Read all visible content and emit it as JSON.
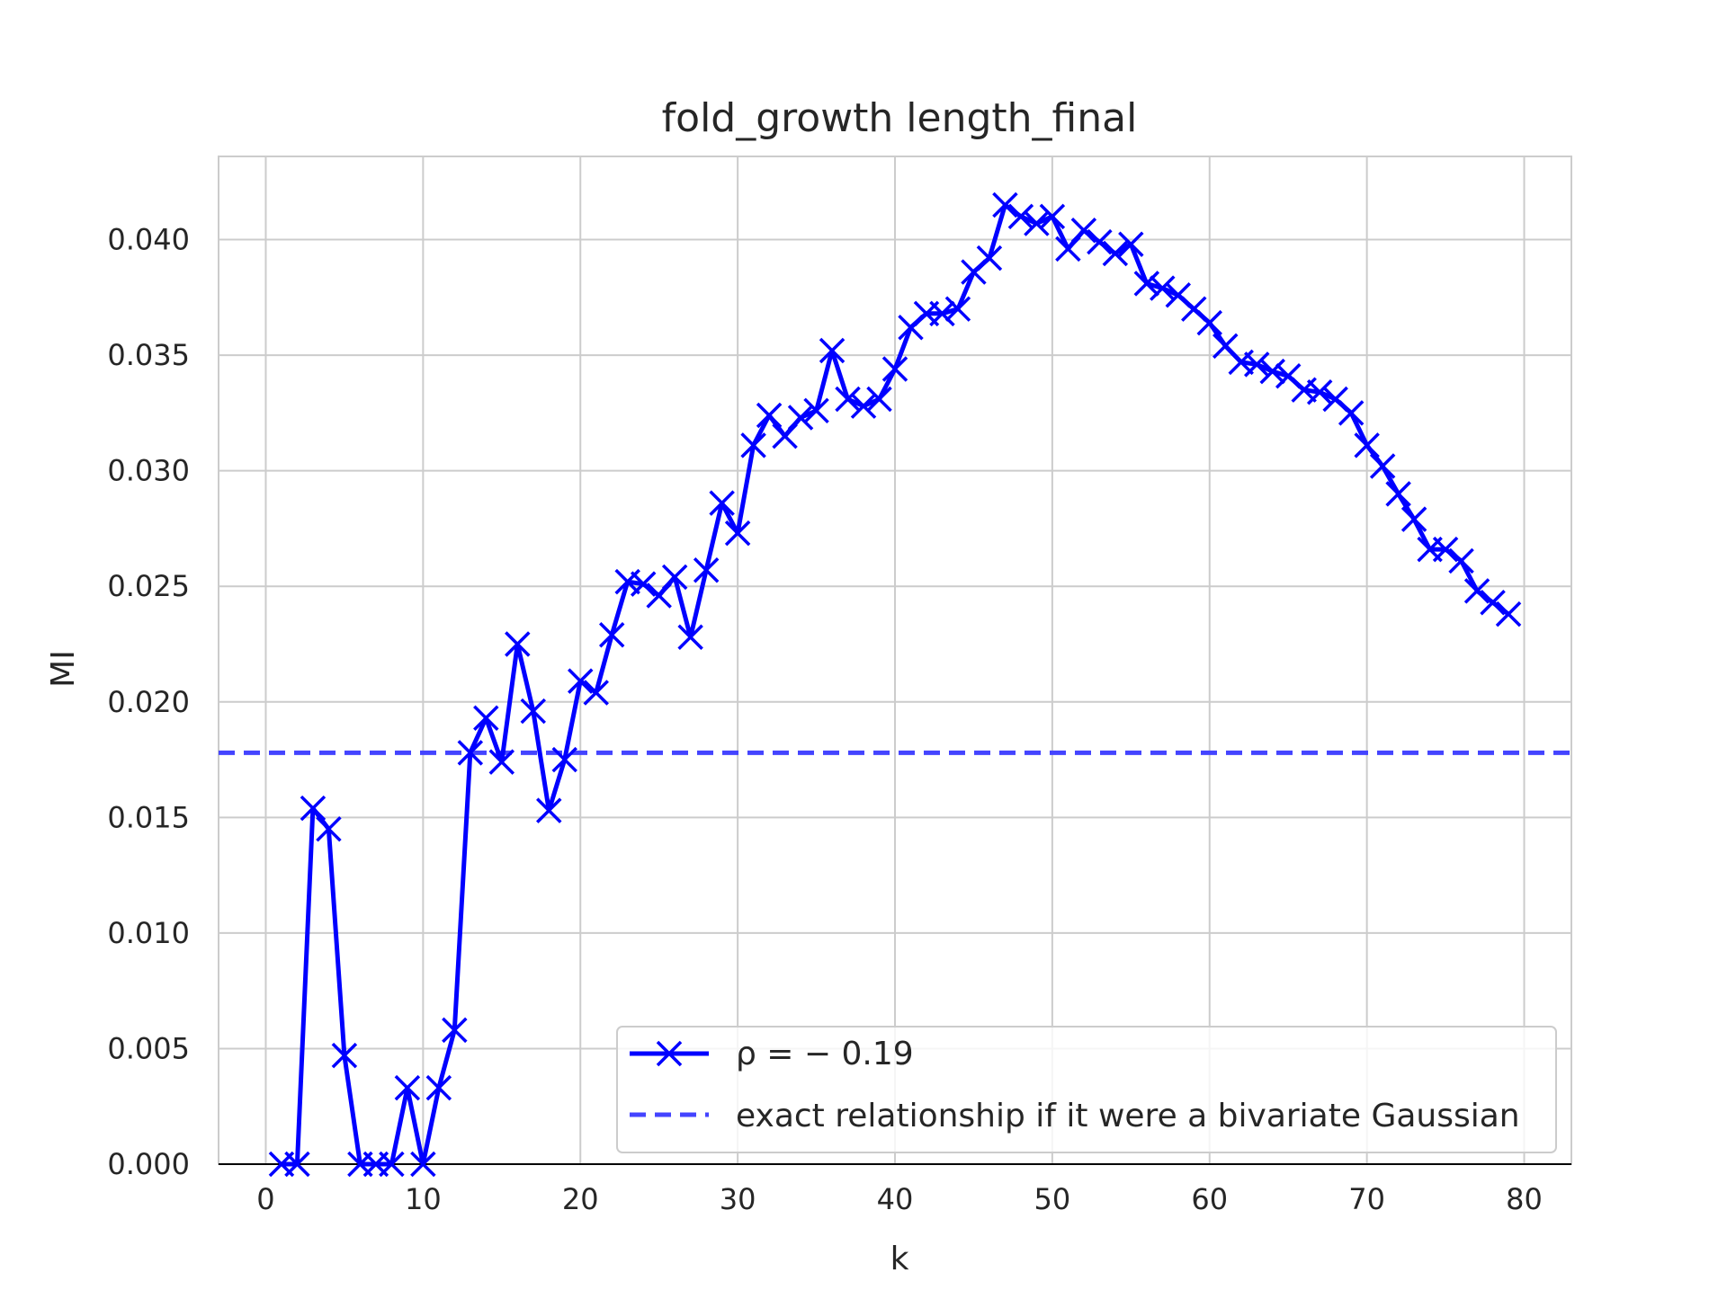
{
  "chart_data": {
    "type": "line",
    "title": "fold_growth length_final",
    "xlabel": "k",
    "ylabel": "MI",
    "xlim": [
      -3,
      83
    ],
    "ylim": [
      0,
      0.0436
    ],
    "xticks": [
      0,
      10,
      20,
      30,
      40,
      50,
      60,
      70,
      80
    ],
    "xtick_labels": [
      "0",
      "10",
      "20",
      "30",
      "40",
      "50",
      "60",
      "70",
      "80"
    ],
    "yticks": [
      0,
      0.005,
      0.01,
      0.015,
      0.02,
      0.025,
      0.03,
      0.035,
      0.04
    ],
    "ytick_labels": [
      "0.000",
      "0.005",
      "0.010",
      "0.015",
      "0.020",
      "0.025",
      "0.030",
      "0.035",
      "0.040"
    ],
    "grid": true,
    "legend_position": "lower-right",
    "series": [
      {
        "name": "ρ = − 0.19",
        "color": "#0000ff",
        "marker": "x",
        "line_style": "solid",
        "x": [
          1,
          2,
          3,
          4,
          5,
          6,
          7,
          8,
          9,
          10,
          11,
          12,
          13,
          14,
          15,
          16,
          17,
          18,
          19,
          20,
          21,
          22,
          23,
          24,
          25,
          26,
          27,
          28,
          29,
          30,
          31,
          32,
          33,
          34,
          35,
          36,
          37,
          38,
          39,
          40,
          41,
          42,
          43,
          44,
          45,
          46,
          47,
          48,
          49,
          50,
          51,
          52,
          53,
          54,
          55,
          56,
          57,
          58,
          59,
          60,
          61,
          62,
          63,
          64,
          65,
          66,
          67,
          68,
          69,
          70,
          71,
          72,
          73,
          74,
          75,
          76,
          77,
          78,
          79
        ],
        "values": [
          0,
          0,
          0.0154,
          0.0145,
          0.0047,
          0,
          0,
          0,
          0.0033,
          0,
          0.0033,
          0.0058,
          0.0178,
          0.0193,
          0.0174,
          0.0225,
          0.0196,
          0.0153,
          0.0175,
          0.0209,
          0.0204,
          0.0229,
          0.0252,
          0.0251,
          0.0246,
          0.0254,
          0.0228,
          0.0257,
          0.0286,
          0.0273,
          0.0311,
          0.0324,
          0.0315,
          0.0323,
          0.0326,
          0.0352,
          0.0331,
          0.0328,
          0.0331,
          0.0344,
          0.0362,
          0.0368,
          0.0368,
          0.037,
          0.0386,
          0.0392,
          0.0415,
          0.041,
          0.0407,
          0.041,
          0.0396,
          0.0404,
          0.0399,
          0.0394,
          0.0398,
          0.0381,
          0.0379,
          0.0376,
          0.037,
          0.0364,
          0.0354,
          0.0347,
          0.0346,
          0.0343,
          0.0341,
          0.0335,
          0.0334,
          0.0331,
          0.0325,
          0.0311,
          0.0302,
          0.029,
          0.0279,
          0.0266,
          0.0266,
          0.0261,
          0.0248,
          0.0243,
          0.0238
        ]
      },
      {
        "name": "exact relationship if it were a bivariate Gaussian",
        "color": "#4444ff",
        "line_style": "dashed",
        "y": 0.0178
      }
    ]
  },
  "colors": {
    "line": "#0000ff",
    "dashed": "#4444ff",
    "grid": "#cccccc",
    "text": "#262626"
  }
}
